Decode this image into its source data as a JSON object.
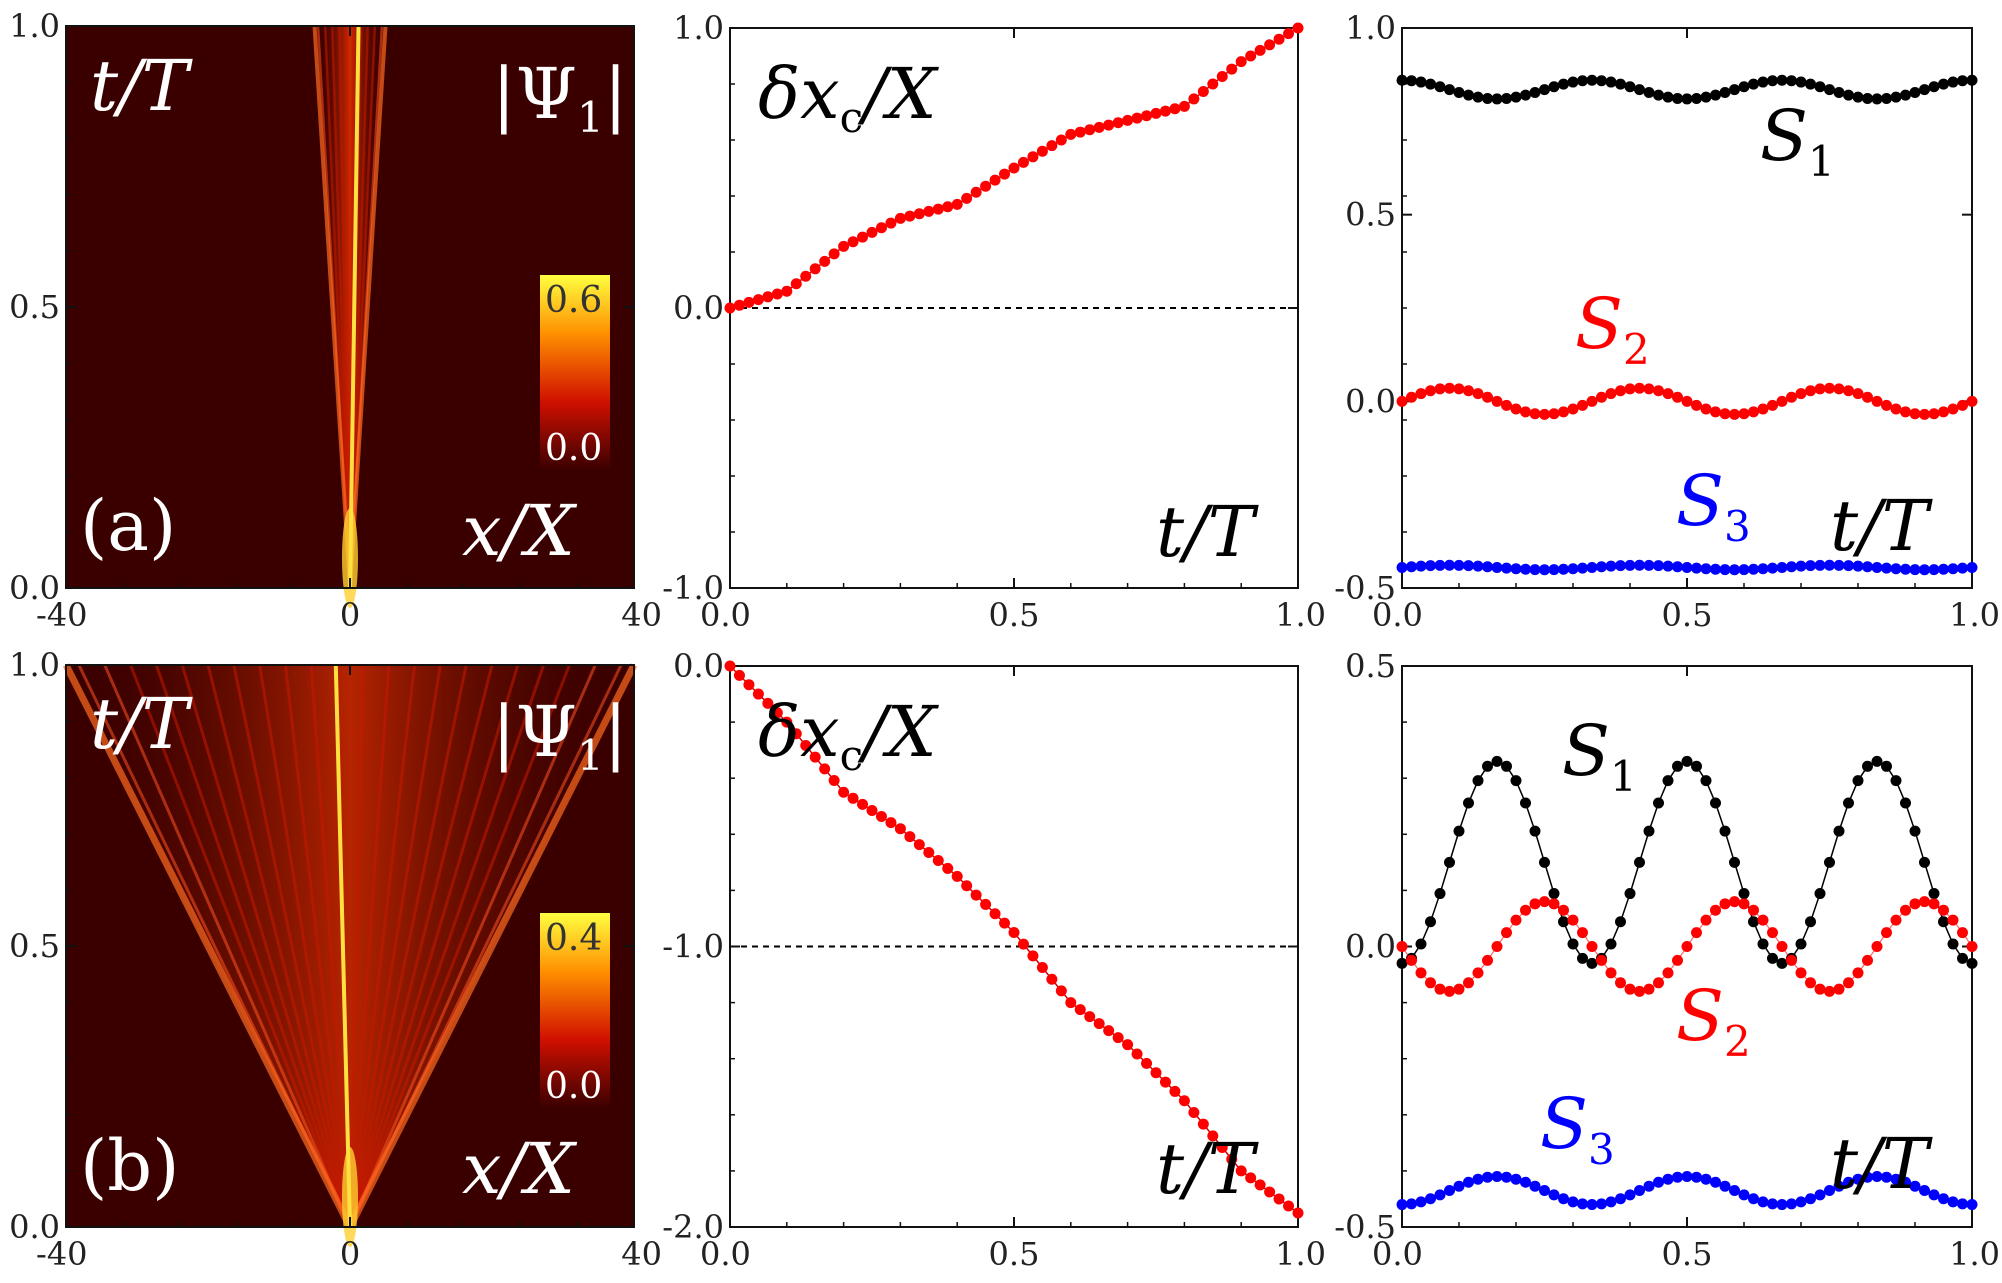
{
  "chart_data": [
    {
      "type": "heatmap",
      "panel": "a1",
      "panel_label": "(a)",
      "field_label": "|Ψ1|",
      "xlabel": "x/X",
      "ylabel": "t/T",
      "xlim": [
        -40,
        40
      ],
      "ylim": [
        0.0,
        1.0
      ],
      "xticks": [
        "-40",
        "0",
        "40"
      ],
      "yticks": [
        "0.0",
        "0.5",
        "1.0"
      ],
      "colorbar": {
        "min": "0.0",
        "max": "0.6"
      },
      "track": {
        "t": [
          0.0,
          1.0
        ],
        "x": [
          0.0,
          1.2
        ]
      },
      "spread_at_t1": 5,
      "colors": {
        "low": "#3a0000",
        "mid": "#e02000",
        "high": "#ffff40",
        "track": "#ffe040"
      }
    },
    {
      "type": "line",
      "panel": "a2",
      "ylabel": "δx_c/X",
      "xlabel": "t/T",
      "xlim": [
        0.0,
        1.0
      ],
      "ylim": [
        -1.0,
        1.0
      ],
      "xticks": [
        "0.0",
        "0.5",
        "1.0"
      ],
      "yticks": [
        "-1.0",
        "0.0",
        "1.0"
      ],
      "reference_line": 0.0,
      "series": [
        {
          "name": "δx_c/X",
          "color": "#ff0000",
          "x": [
            0.0,
            0.1,
            0.2,
            0.3,
            0.4,
            0.5,
            0.6,
            0.7,
            0.8,
            0.9,
            1.0
          ],
          "y": [
            0.0,
            0.06,
            0.22,
            0.32,
            0.37,
            0.5,
            0.62,
            0.67,
            0.72,
            0.88,
            1.0
          ]
        }
      ]
    },
    {
      "type": "scatter",
      "panel": "a3",
      "xlabel": "t/T",
      "xlim": [
        0.0,
        1.0
      ],
      "ylim": [
        -0.5,
        1.0
      ],
      "xticks": [
        "0.0",
        "0.5",
        "1.0"
      ],
      "yticks": [
        "-0.5",
        "0.0",
        "0.5",
        "1.0"
      ],
      "series": [
        {
          "name": "S1",
          "sub": "1",
          "color": "#000000",
          "mean": 0.835,
          "amp": 0.025,
          "periods": 3,
          "phase": 1.5708
        },
        {
          "name": "S2",
          "sub": "2",
          "color": "#ff0000",
          "mean": 0.0,
          "amp": 0.035,
          "periods": 3,
          "phase": 0.0
        },
        {
          "name": "S3",
          "sub": "3",
          "color": "#0000ff",
          "mean": -0.445,
          "amp": 0.006,
          "periods": 3,
          "phase": 0.0
        }
      ]
    },
    {
      "type": "heatmap",
      "panel": "b1",
      "panel_label": "(b)",
      "field_label": "|Ψ1|",
      "xlabel": "x/X",
      "ylabel": "t/T",
      "xlim": [
        -40,
        40
      ],
      "ylim": [
        0.0,
        1.0
      ],
      "xticks": [
        "-40",
        "0",
        "40"
      ],
      "yticks": [
        "0.0",
        "0.5",
        "1.0"
      ],
      "colorbar": {
        "min": "0.0",
        "max": "0.4"
      },
      "track": {
        "t": [
          0.0,
          1.0
        ],
        "x": [
          0.0,
          -2.0
        ]
      },
      "spread_at_t1": 40,
      "colors": {
        "low": "#3a0000",
        "mid": "#e02000",
        "high": "#ffff40",
        "track": "#ffe040"
      }
    },
    {
      "type": "line",
      "panel": "b2",
      "ylabel": "δx_c/X",
      "xlabel": "t/T",
      "xlim": [
        0.0,
        1.0
      ],
      "ylim": [
        -2.0,
        0.0
      ],
      "xticks": [
        "0.0",
        "0.5",
        "1.0"
      ],
      "yticks": [
        "-2.0",
        "-1.0",
        "0.0"
      ],
      "reference_line": -1.0,
      "series": [
        {
          "name": "δx_c/X",
          "color": "#ff0000",
          "x": [
            0.0,
            0.1,
            0.2,
            0.3,
            0.4,
            0.5,
            0.6,
            0.7,
            0.8,
            0.9,
            1.0
          ],
          "y": [
            0.0,
            -0.2,
            -0.45,
            -0.58,
            -0.75,
            -0.95,
            -1.2,
            -1.35,
            -1.55,
            -1.8,
            -1.95
          ]
        }
      ]
    },
    {
      "type": "scatter",
      "panel": "b3",
      "xlabel": "t/T",
      "xlim": [
        0.0,
        1.0
      ],
      "ylim": [
        -0.5,
        0.5
      ],
      "xticks": [
        "0.0",
        "0.5",
        "1.0"
      ],
      "yticks": [
        "-0.5",
        "0.0",
        "0.5"
      ],
      "series": [
        {
          "name": "S1",
          "sub": "1",
          "color": "#000000",
          "mean": 0.15,
          "amp": 0.18,
          "periods": 3,
          "phase": -1.5708,
          "connected": true
        },
        {
          "name": "S2",
          "sub": "2",
          "color": "#ff0000",
          "mean": 0.0,
          "amp": 0.08,
          "periods": 3,
          "phase": 3.1416
        },
        {
          "name": "S3",
          "sub": "3",
          "color": "#0000ff",
          "mean": -0.435,
          "amp": 0.025,
          "periods": 3,
          "phase": -1.5708
        }
      ]
    }
  ]
}
